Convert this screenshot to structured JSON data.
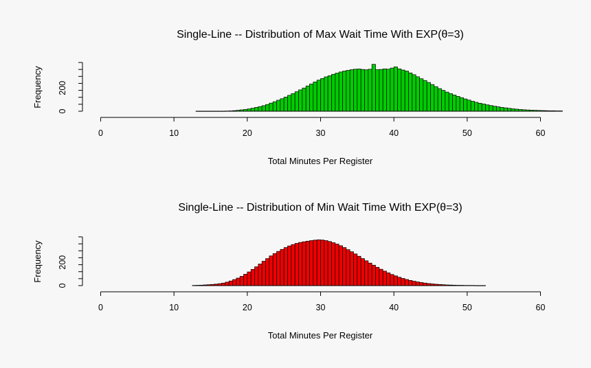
{
  "chart_data": [
    {
      "type": "bar",
      "title": "Single-Line -- Distribution of Max Wait Time With EXP(θ=3)",
      "xlabel": "Total Minutes Per Register",
      "ylabel": "Frequency",
      "xlim": [
        0,
        60
      ],
      "xticks": [
        0,
        10,
        20,
        30,
        40,
        50,
        60
      ],
      "ylim": [
        0,
        420
      ],
      "yticks": [
        0,
        200
      ],
      "grid": false,
      "legend": "none",
      "bar_color": "#00cc00",
      "bin_width": 0.5,
      "bin_start": 13,
      "values": [
        1,
        1,
        1,
        1,
        1,
        1,
        1,
        1,
        2,
        3,
        5,
        8,
        12,
        15,
        20,
        26,
        33,
        40,
        48,
        58,
        70,
        82,
        95,
        108,
        122,
        137,
        152,
        168,
        184,
        200,
        218,
        235,
        252,
        268,
        282,
        296,
        306,
        318,
        328,
        338,
        346,
        352,
        358,
        362,
        364,
        360,
        357,
        362,
        404,
        358,
        360,
        365,
        362,
        372,
        382,
        365,
        355,
        346,
        330,
        315,
        297,
        280,
        265,
        248,
        230,
        212,
        195,
        180,
        165,
        152,
        140,
        128,
        117,
        106,
        96,
        86,
        77,
        69,
        62,
        55,
        49,
        43,
        38,
        33,
        29,
        25,
        21,
        18,
        15,
        13,
        11,
        9,
        8,
        7,
        6,
        5,
        4,
        4,
        3,
        3
      ]
    },
    {
      "type": "bar",
      "title": "Single-Line -- Distribution of Min Wait Time With EXP(θ=3)",
      "xlabel": "Total Minutes Per Register",
      "ylabel": "Frequency",
      "xlim": [
        0,
        60
      ],
      "xticks": [
        0,
        10,
        20,
        30,
        40,
        50,
        60
      ],
      "ylim": [
        0,
        420
      ],
      "yticks": [
        0,
        200
      ],
      "grid": false,
      "legend": "none",
      "bar_color": "#ee0000",
      "bin_width": 0.5,
      "bin_start": 12.5,
      "values": [
        2,
        3,
        4,
        6,
        8,
        10,
        13,
        17,
        22,
        30,
        40,
        52,
        65,
        80,
        98,
        118,
        140,
        162,
        186,
        210,
        233,
        256,
        276,
        295,
        312,
        328,
        342,
        354,
        364,
        372,
        378,
        383,
        388,
        392,
        395,
        393,
        388,
        380,
        370,
        358,
        344,
        328,
        310,
        292,
        273,
        253,
        233,
        214,
        194,
        176,
        158,
        141,
        125,
        110,
        96,
        84,
        72,
        62,
        53,
        45,
        38,
        32,
        27,
        22,
        18,
        15,
        12,
        10,
        8,
        6,
        5,
        4,
        3,
        3,
        2,
        2,
        2,
        1,
        1,
        1
      ]
    }
  ]
}
